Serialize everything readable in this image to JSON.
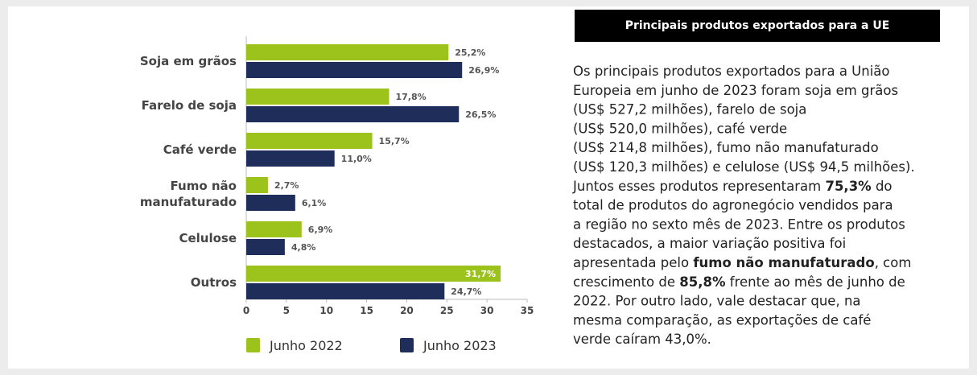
{
  "chart_data": {
    "type": "bar",
    "orientation": "horizontal",
    "categories": [
      "Soja em grãos",
      "Farelo de soja",
      "Café verde",
      "Fumo não\nmanufaturado",
      "Celulose",
      "Outros"
    ],
    "series": [
      {
        "name": "Junho 2022",
        "color": "#9bc31c",
        "values": [
          25.2,
          17.8,
          15.7,
          2.7,
          6.9,
          31.7
        ],
        "value_labels": [
          "25,2%",
          "17,8%",
          "15,7%",
          "2,7%",
          "6,9%",
          "31,7%"
        ]
      },
      {
        "name": "Junho 2023",
        "color": "#1f2d5a",
        "values": [
          26.9,
          26.5,
          11.0,
          6.1,
          4.8,
          24.7
        ],
        "value_labels": [
          "26,9%",
          "26,5%",
          "11,0%",
          "6,1%",
          "4,8%",
          "24,7%"
        ]
      }
    ],
    "xlim": [
      0,
      35
    ],
    "xticks": [
      0,
      5,
      10,
      15,
      20,
      25,
      30,
      35
    ],
    "grid": false,
    "legend": "bottom"
  },
  "panel": {
    "title": "Principais produtos exportados para a UE",
    "lines": [
      [
        {
          "text": "Os principais produtos exportados para a União"
        }
      ],
      [
        {
          "text": "Europeia em junho de 2023 foram soja em grãos"
        }
      ],
      [
        {
          "text": "(US$ 527,2 milhões), farelo de soja"
        }
      ],
      [
        {
          "text": "(US$ 520,0 milhões), café verde"
        }
      ],
      [
        {
          "text": "(US$ 214,8 milhões), fumo não manufaturado"
        }
      ],
      [
        {
          "text": "(US$ 120,3 milhões) e celulose (US$ 94,5 milhões)."
        }
      ],
      [
        {
          "text": "Juntos esses produtos representaram "
        },
        {
          "text": "75,3%",
          "bold": true
        },
        {
          "text": " do"
        }
      ],
      [
        {
          "text": "total de produtos do agronegócio vendidos para"
        }
      ],
      [
        {
          "text": "a região no sexto mês de 2023. Entre os produtos"
        }
      ],
      [
        {
          "text": "destacados, a maior variação positiva foi"
        }
      ],
      [
        {
          "text": "apresentada pelo "
        },
        {
          "text": "fumo não manufaturado",
          "bold": true
        },
        {
          "text": ", com"
        }
      ],
      [
        {
          "text": "crescimento de "
        },
        {
          "text": "85,8%",
          "bold": true
        },
        {
          "text": " frente ao mês de junho de"
        }
      ],
      [
        {
          "text": "2022. Por outro lado, vale destacar que, na"
        }
      ],
      [
        {
          "text": "mesma comparação, as exportações de café"
        }
      ],
      [
        {
          "text": "verde caíram 43,0%."
        }
      ]
    ]
  }
}
